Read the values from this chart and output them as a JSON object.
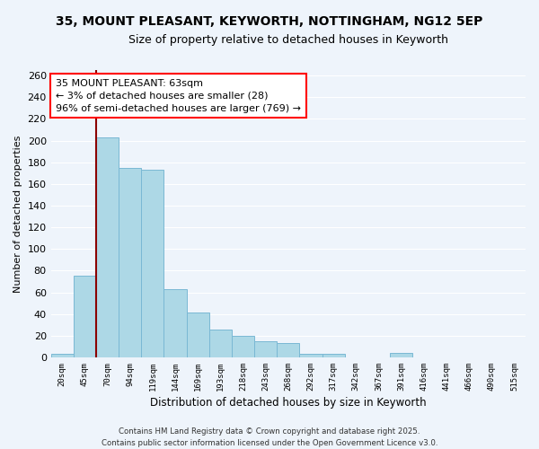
{
  "title_line1": "35, MOUNT PLEASANT, KEYWORTH, NOTTINGHAM, NG12 5EP",
  "title_line2": "Size of property relative to detached houses in Keyworth",
  "xlabel": "Distribution of detached houses by size in Keyworth",
  "ylabel": "Number of detached properties",
  "bar_categories": [
    "20sqm",
    "45sqm",
    "70sqm",
    "94sqm",
    "119sqm",
    "144sqm",
    "169sqm",
    "193sqm",
    "218sqm",
    "243sqm",
    "268sqm",
    "292sqm",
    "317sqm",
    "342sqm",
    "367sqm",
    "391sqm",
    "416sqm",
    "441sqm",
    "466sqm",
    "490sqm",
    "515sqm"
  ],
  "bar_values": [
    3,
    75,
    203,
    175,
    173,
    63,
    41,
    26,
    20,
    15,
    13,
    3,
    3,
    0,
    0,
    4,
    0,
    0,
    0,
    0,
    0
  ],
  "bar_color": "#add8e6",
  "bar_edge_color": "#7ab8d4",
  "ylim": [
    0,
    265
  ],
  "yticks": [
    0,
    20,
    40,
    60,
    80,
    100,
    120,
    140,
    160,
    180,
    200,
    220,
    240,
    260
  ],
  "annotation_box_text": "35 MOUNT PLEASANT: 63sqm\n← 3% of detached houses are smaller (28)\n96% of semi-detached houses are larger (769) →",
  "red_line_bin": 1.5,
  "footer_line1": "Contains HM Land Registry data © Crown copyright and database right 2025.",
  "footer_line2": "Contains public sector information licensed under the Open Government Licence v3.0.",
  "background_color": "#eef4fb",
  "grid_color": "#ffffff"
}
